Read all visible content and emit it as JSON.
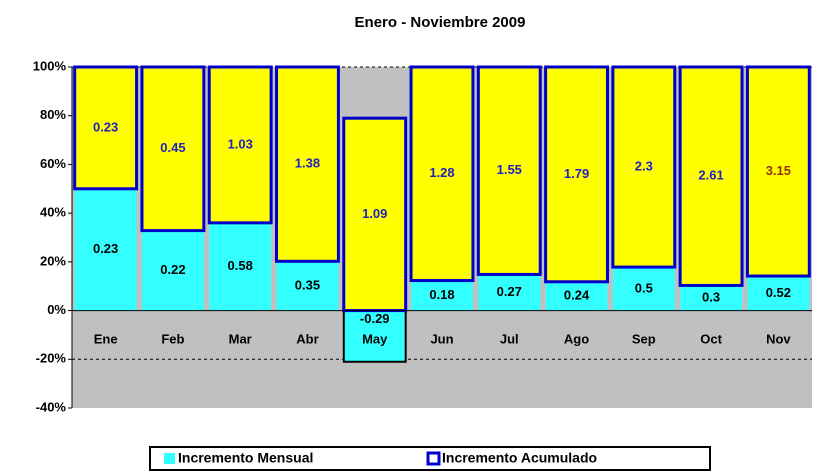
{
  "chart_data": {
    "type": "bar",
    "stacking": "percent",
    "title": "Enero - Noviembre 2009",
    "categories": [
      "Ene",
      "Feb",
      "Mar",
      "Abr",
      "May",
      "Jun",
      "Jul",
      "Ago",
      "Sep",
      "Oct",
      "Nov"
    ],
    "series": [
      {
        "name": "Incremento Mensual",
        "color": "#33ffff",
        "label_color": "#000000",
        "values": [
          0.23,
          0.22,
          0.58,
          0.35,
          -0.29,
          0.18,
          0.27,
          0.24,
          0.5,
          0.3,
          0.52
        ]
      },
      {
        "name": "Incremento Acumulado",
        "color": "#ffff00",
        "edge_color": "#0000cc",
        "label_color": "#2222bb",
        "label_colors": [
          "#2222bb",
          "#2222bb",
          "#2222bb",
          "#2222bb",
          "#2222bb",
          "#2222bb",
          "#2222bb",
          "#2222bb",
          "#2222bb",
          "#2222bb",
          "#993300"
        ],
        "values": [
          0.23,
          0.45,
          1.03,
          1.38,
          1.09,
          1.28,
          1.55,
          1.79,
          2.3,
          2.61,
          3.15
        ]
      }
    ],
    "ylim": [
      -40,
      100
    ],
    "yticks": [
      {
        "value": -40,
        "label": "-40%"
      },
      {
        "value": -20,
        "label": "-20%"
      },
      {
        "value": 0,
        "label": "0%"
      },
      {
        "value": 20,
        "label": "20%"
      },
      {
        "value": 40,
        "label": "40%"
      },
      {
        "value": 60,
        "label": "60%"
      },
      {
        "value": 80,
        "label": "80%"
      },
      {
        "value": 100,
        "label": "100%"
      }
    ],
    "grid_lines": [
      -20,
      100
    ],
    "plot_background": "#c0c0c0",
    "legend": "bottom"
  }
}
